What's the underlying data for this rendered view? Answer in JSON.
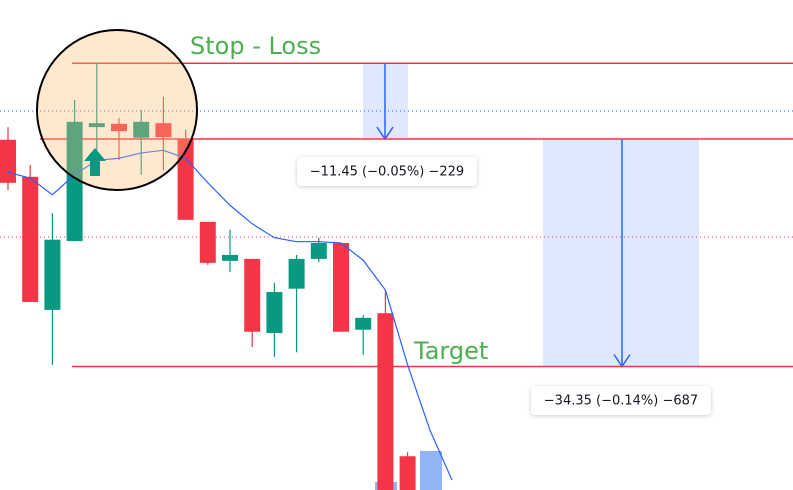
{
  "chart_data": {
    "type": "candlestick",
    "ylim": [
      24482,
      24556
    ],
    "categories": [
      null,
      null,
      null,
      null,
      null,
      null,
      null,
      null,
      null,
      null,
      null,
      null,
      null,
      null,
      null,
      null,
      null,
      null,
      null,
      null,
      null
    ],
    "open": [
      24534.9,
      24529.3,
      24509.2,
      24519.6,
      24536.8,
      24537.3,
      24535.2,
      24537.4,
      24535.0,
      24522.5,
      24516.6,
      24516.9,
      24505.7,
      24512.4,
      24516.9,
      24519.3,
      24506.2,
      24508.7,
      24487.1,
      null,
      null
    ],
    "high": [
      24536.8,
      24531.1,
      24523.8,
      24540.9,
      24546.5,
      24538.2,
      24539.4,
      24541.4,
      24536.4,
      24522.5,
      24521.3,
      24516.9,
      24513.3,
      24517.5,
      24520.1,
      24519.3,
      24508.4,
      24512.2,
      24487.7,
      null,
      null
    ],
    "low": [
      24527.3,
      24510.4,
      24500.9,
      24519.6,
      24533.3,
      24531.8,
      24529.6,
      24530.3,
      24522.8,
      24516.0,
      24514.9,
      24503.6,
      24502.1,
      24502.8,
      24516.4,
      24505.9,
      24502.4,
      24482,
      24482,
      null,
      null
    ],
    "close": [
      24528.4,
      24510.4,
      24519.8,
      24537.6,
      24537.4,
      24536.2,
      24537.6,
      24535.3,
      24522.8,
      24516.3,
      24517.5,
      24505.9,
      24511.9,
      24516.9,
      24519.3,
      24505.9,
      24508.0,
      24482,
      24482,
      null,
      null
    ],
    "up_color": "#089981",
    "down_color": "#f23645",
    "ma": {
      "color": "#2962ff",
      "values": [
        24530.0,
        24529.1,
        24526.6,
        24529.6,
        24531.8,
        24532.1,
        24532.9,
        24533.3,
        24532.1,
        24528.4,
        24525.0,
        24522.2,
        24520.1,
        24519.5,
        24519.5,
        24519.3,
        24516.7,
        24512.2,
        24500.9,
        24491.1,
        24483.5
      ]
    },
    "levels": {
      "stop": 24546.45,
      "entry": 24535.0,
      "target": 24500.65
    },
    "level_color": "#f23645",
    "annotations": {
      "stop_label": "Stop - Loss",
      "target_label": "Target",
      "stop_measure": "−11.45 (−0.05%) −229",
      "target_measure": "−34.35 (−0.14%) −687"
    }
  }
}
